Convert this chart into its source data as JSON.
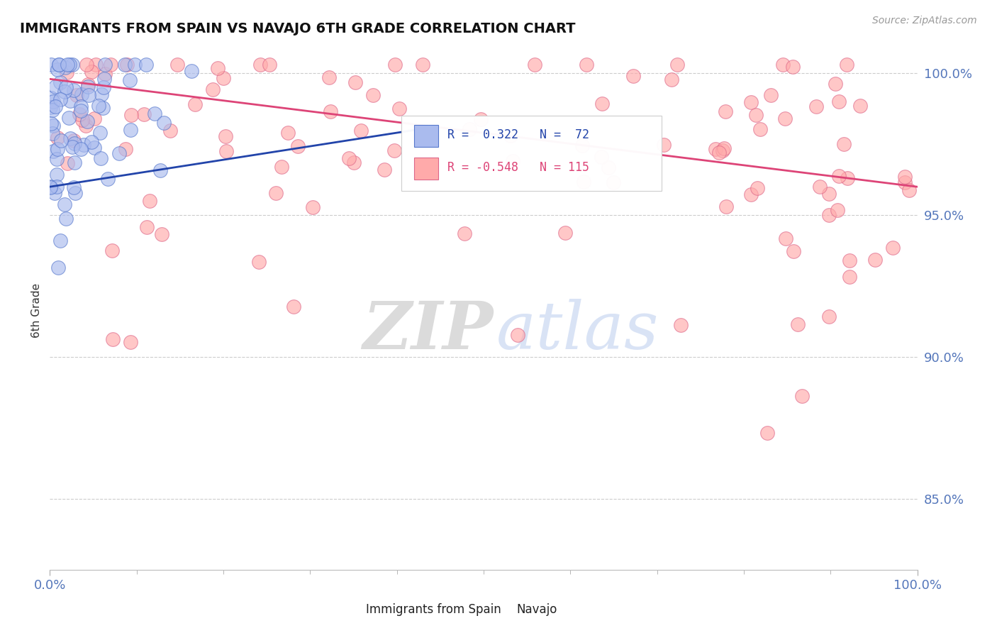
{
  "title": "IMMIGRANTS FROM SPAIN VS NAVAJO 6TH GRADE CORRELATION CHART",
  "source_text": "Source: ZipAtlas.com",
  "ylabel": "6th Grade",
  "x_min": 0.0,
  "x_max": 1.0,
  "y_min": 0.825,
  "y_max": 1.008,
  "y_ticks": [
    0.85,
    0.9,
    0.95,
    1.0
  ],
  "y_tick_labels": [
    "85.0%",
    "90.0%",
    "95.0%",
    "100.0%"
  ],
  "x_tick_labels": [
    "0.0%",
    "100.0%"
  ],
  "blue_R": 0.322,
  "blue_N": 72,
  "pink_R": -0.548,
  "pink_N": 115,
  "blue_color": "#AABBEE",
  "pink_color": "#FFAAAA",
  "blue_edge_color": "#5577CC",
  "pink_edge_color": "#DD6688",
  "blue_line_color": "#2244AA",
  "pink_line_color": "#DD4477",
  "legend_label_blue": "Immigrants from Spain",
  "legend_label_pink": "Navajo",
  "background_color": "#FFFFFF",
  "grid_color": "#CCCCCC",
  "tick_color": "#5577BB",
  "title_color": "#111111",
  "ylabel_color": "#333333",
  "blue_trend_x0": 0.0,
  "blue_trend_x1": 0.42,
  "blue_trend_y0": 0.96,
  "blue_trend_y1": 0.98,
  "pink_trend_x0": 0.0,
  "pink_trend_x1": 1.0,
  "pink_trend_y0": 0.998,
  "pink_trend_y1": 0.96
}
